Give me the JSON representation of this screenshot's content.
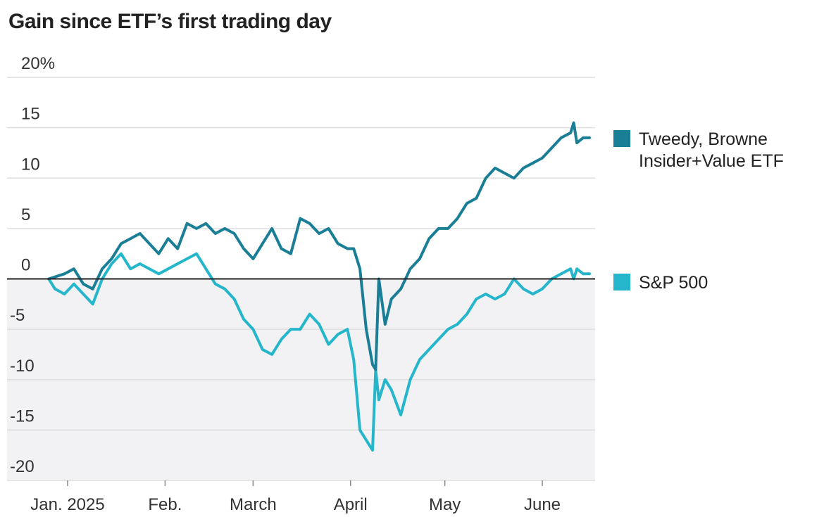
{
  "title": "Gain since ETF’s first trading day",
  "colors": {
    "tweedy": "#1a7e96",
    "sp500": "#25b6cc",
    "negative_shade": "#f2f2f4",
    "zero_line": "#222222",
    "grid": "#dedede"
  },
  "chart_data": {
    "type": "line",
    "title": "Gain since ETF’s first trading day",
    "ylim": [
      -20,
      20
    ],
    "yticks": [
      20,
      15,
      10,
      5,
      0,
      -5,
      -10,
      -15,
      -20
    ],
    "ytick_labels": [
      "20%",
      "15",
      "10",
      "5",
      "0",
      "-5",
      "-10",
      "-15",
      "-20"
    ],
    "xticks": [
      "2025-01-01",
      "2025-02-01",
      "2025-03-01",
      "2025-04-01",
      "2025-05-01",
      "2025-06-01"
    ],
    "xtick_labels": [
      "Jan. 2025",
      "Feb.",
      "March",
      "April",
      "May",
      "June"
    ],
    "xlim": [
      "2024-12-26",
      "2025-06-18"
    ],
    "legend": "right",
    "series": [
      {
        "name": "Tweedy, Browne Insider+Value ETF",
        "x": [
          "2024-12-26",
          "2024-12-28",
          "2024-12-31",
          "2025-01-03",
          "2025-01-06",
          "2025-01-09",
          "2025-01-12",
          "2025-01-15",
          "2025-01-18",
          "2025-01-21",
          "2025-01-24",
          "2025-01-27",
          "2025-01-30",
          "2025-02-02",
          "2025-02-05",
          "2025-02-08",
          "2025-02-11",
          "2025-02-14",
          "2025-02-17",
          "2025-02-20",
          "2025-02-23",
          "2025-02-26",
          "2025-03-01",
          "2025-03-04",
          "2025-03-07",
          "2025-03-10",
          "2025-03-13",
          "2025-03-16",
          "2025-03-19",
          "2025-03-22",
          "2025-03-25",
          "2025-03-28",
          "2025-03-31",
          "2025-04-02",
          "2025-04-04",
          "2025-04-06",
          "2025-04-08",
          "2025-04-09",
          "2025-04-10",
          "2025-04-12",
          "2025-04-14",
          "2025-04-17",
          "2025-04-20",
          "2025-04-23",
          "2025-04-26",
          "2025-04-29",
          "2025-05-02",
          "2025-05-05",
          "2025-05-08",
          "2025-05-11",
          "2025-05-14",
          "2025-05-17",
          "2025-05-20",
          "2025-05-23",
          "2025-05-26",
          "2025-05-29",
          "2025-06-01",
          "2025-06-04",
          "2025-06-07",
          "2025-06-10",
          "2025-06-11",
          "2025-06-12",
          "2025-06-14",
          "2025-06-16"
        ],
        "y": [
          0,
          0.2,
          0.5,
          1.0,
          -0.5,
          -1.0,
          1.0,
          2.0,
          3.5,
          4.0,
          4.5,
          3.5,
          2.5,
          4.0,
          3.0,
          5.5,
          5.0,
          5.5,
          4.5,
          5.0,
          4.5,
          3.0,
          2.0,
          3.5,
          5.0,
          3.0,
          2.5,
          6.0,
          5.5,
          4.5,
          5.0,
          3.5,
          3.0,
          3.0,
          1.0,
          -5.0,
          -8.5,
          -9.0,
          0,
          -4.5,
          -2.0,
          -1.0,
          1.0,
          2.0,
          4.0,
          5.0,
          5.0,
          6.0,
          7.5,
          8.0,
          10.0,
          11.0,
          10.5,
          10.0,
          11.0,
          11.5,
          12.0,
          13.0,
          14.0,
          14.5,
          15.5,
          13.5,
          14.0,
          14.0
        ]
      },
      {
        "name": "S&P 500",
        "x": [
          "2024-12-26",
          "2024-12-28",
          "2024-12-31",
          "2025-01-03",
          "2025-01-06",
          "2025-01-09",
          "2025-01-12",
          "2025-01-15",
          "2025-01-18",
          "2025-01-21",
          "2025-01-24",
          "2025-01-27",
          "2025-01-30",
          "2025-02-02",
          "2025-02-05",
          "2025-02-08",
          "2025-02-11",
          "2025-02-14",
          "2025-02-17",
          "2025-02-20",
          "2025-02-23",
          "2025-02-26",
          "2025-03-01",
          "2025-03-04",
          "2025-03-07",
          "2025-03-10",
          "2025-03-13",
          "2025-03-16",
          "2025-03-19",
          "2025-03-22",
          "2025-03-25",
          "2025-03-28",
          "2025-03-31",
          "2025-04-02",
          "2025-04-04",
          "2025-04-06",
          "2025-04-08",
          "2025-04-09",
          "2025-04-10",
          "2025-04-12",
          "2025-04-14",
          "2025-04-17",
          "2025-04-20",
          "2025-04-23",
          "2025-04-26",
          "2025-04-29",
          "2025-05-02",
          "2025-05-05",
          "2025-05-08",
          "2025-05-11",
          "2025-05-14",
          "2025-05-17",
          "2025-05-20",
          "2025-05-23",
          "2025-05-26",
          "2025-05-29",
          "2025-06-01",
          "2025-06-04",
          "2025-06-07",
          "2025-06-10",
          "2025-06-11",
          "2025-06-12",
          "2025-06-14",
          "2025-06-16"
        ],
        "y": [
          0,
          -1.0,
          -1.5,
          -0.5,
          -1.5,
          -2.5,
          0,
          1.5,
          2.5,
          1.0,
          1.5,
          1.0,
          0.5,
          1.0,
          1.5,
          2.0,
          2.5,
          1.0,
          -0.5,
          -1.0,
          -2.0,
          -4.0,
          -5.0,
          -7.0,
          -7.5,
          -6.0,
          -5.0,
          -5.0,
          -3.5,
          -4.5,
          -6.5,
          -5.5,
          -5.0,
          -8.0,
          -15.0,
          -16.0,
          -17.0,
          -9.0,
          -12.0,
          -10.0,
          -11.0,
          -13.5,
          -10.0,
          -8.0,
          -7.0,
          -6.0,
          -5.0,
          -4.5,
          -3.5,
          -2.0,
          -1.5,
          -2.0,
          -1.5,
          0,
          -1.0,
          -1.5,
          -1.0,
          0,
          0.5,
          1.0,
          0,
          1.0,
          0.5,
          0.5
        ]
      }
    ]
  }
}
